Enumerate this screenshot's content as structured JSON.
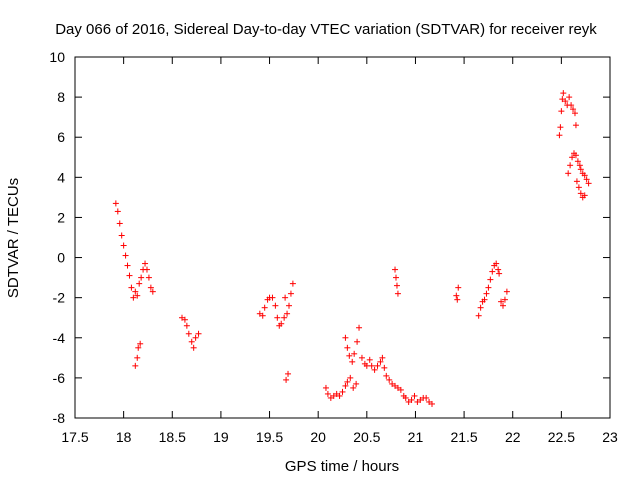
{
  "chart_data": {
    "type": "scatter",
    "title": "Day 066 of 2016, Sidereal Day-to-day VTEC variation (SDTVAR) for receiver reyk",
    "xlabel": "GPS time / hours",
    "ylabel": "SDTVAR / TECUs",
    "xlim": [
      17.5,
      23
    ],
    "ylim": [
      -8,
      10
    ],
    "xticks": [
      "17.5",
      "18",
      "18.5",
      "19",
      "19.5",
      "20",
      "20.5",
      "21",
      "21.5",
      "22",
      "22.5",
      "23"
    ],
    "yticks": [
      "-8",
      "-6",
      "-4",
      "-2",
      "0",
      "2",
      "4",
      "6",
      "8",
      "10"
    ],
    "grid": false,
    "marker": "+",
    "marker_color": "#ff0000",
    "series": [
      {
        "name": "SDTVAR",
        "points": [
          [
            17.92,
            2.7
          ],
          [
            17.94,
            2.3
          ],
          [
            17.96,
            1.7
          ],
          [
            17.98,
            1.1
          ],
          [
            18.0,
            0.6
          ],
          [
            18.02,
            0.1
          ],
          [
            18.04,
            -0.4
          ],
          [
            18.06,
            -0.9
          ],
          [
            18.08,
            -1.5
          ],
          [
            18.1,
            -2.0
          ],
          [
            18.12,
            -1.7
          ],
          [
            18.14,
            -1.9
          ],
          [
            18.16,
            -1.3
          ],
          [
            18.18,
            -1.0
          ],
          [
            18.12,
            -5.4
          ],
          [
            18.14,
            -5.0
          ],
          [
            18.15,
            -4.5
          ],
          [
            18.17,
            -4.3
          ],
          [
            18.2,
            -0.6
          ],
          [
            18.22,
            -0.3
          ],
          [
            18.24,
            -0.6
          ],
          [
            18.26,
            -1.0
          ],
          [
            18.28,
            -1.5
          ],
          [
            18.3,
            -1.7
          ],
          [
            18.6,
            -3.0
          ],
          [
            18.63,
            -3.1
          ],
          [
            18.65,
            -3.4
          ],
          [
            18.67,
            -3.8
          ],
          [
            18.7,
            -4.2
          ],
          [
            18.72,
            -4.5
          ],
          [
            18.74,
            -4.0
          ],
          [
            18.77,
            -3.8
          ],
          [
            19.4,
            -2.8
          ],
          [
            19.43,
            -2.9
          ],
          [
            19.45,
            -2.5
          ],
          [
            19.48,
            -2.1
          ],
          [
            19.5,
            -2.0
          ],
          [
            19.53,
            -2.0
          ],
          [
            19.56,
            -2.4
          ],
          [
            19.58,
            -3.0
          ],
          [
            19.6,
            -3.4
          ],
          [
            19.62,
            -3.3
          ],
          [
            19.65,
            -3.0
          ],
          [
            19.68,
            -2.8
          ],
          [
            19.7,
            -2.4
          ],
          [
            19.72,
            -1.8
          ],
          [
            19.74,
            -1.3
          ],
          [
            19.66,
            -2.0
          ],
          [
            19.67,
            -6.1
          ],
          [
            19.69,
            -5.8
          ],
          [
            20.08,
            -6.5
          ],
          [
            20.1,
            -6.8
          ],
          [
            20.13,
            -7.0
          ],
          [
            20.16,
            -6.9
          ],
          [
            20.19,
            -6.8
          ],
          [
            20.22,
            -6.9
          ],
          [
            20.25,
            -6.7
          ],
          [
            20.28,
            -6.4
          ],
          [
            20.3,
            -6.2
          ],
          [
            20.33,
            -6.0
          ],
          [
            20.36,
            -6.5
          ],
          [
            20.39,
            -6.3
          ],
          [
            20.28,
            -4.0
          ],
          [
            20.3,
            -4.5
          ],
          [
            20.32,
            -4.9
          ],
          [
            20.35,
            -5.2
          ],
          [
            20.37,
            -4.8
          ],
          [
            20.4,
            -4.2
          ],
          [
            20.42,
            -3.5
          ],
          [
            20.45,
            -5.0
          ],
          [
            20.48,
            -5.3
          ],
          [
            20.5,
            -5.4
          ],
          [
            20.53,
            -5.1
          ],
          [
            20.55,
            -5.4
          ],
          [
            20.58,
            -5.6
          ],
          [
            20.61,
            -5.4
          ],
          [
            20.64,
            -5.2
          ],
          [
            20.66,
            -5.0
          ],
          [
            20.68,
            -5.5
          ],
          [
            20.7,
            -5.9
          ],
          [
            20.73,
            -6.1
          ],
          [
            20.76,
            -6.3
          ],
          [
            20.79,
            -6.4
          ],
          [
            20.82,
            -6.5
          ],
          [
            20.85,
            -6.6
          ],
          [
            20.88,
            -6.9
          ],
          [
            20.9,
            -7.0
          ],
          [
            20.93,
            -7.2
          ],
          [
            20.96,
            -7.1
          ],
          [
            20.99,
            -6.9
          ],
          [
            21.02,
            -7.2
          ],
          [
            21.05,
            -7.1
          ],
          [
            21.08,
            -7.0
          ],
          [
            21.11,
            -7.0
          ],
          [
            21.14,
            -7.2
          ],
          [
            21.17,
            -7.3
          ],
          [
            20.79,
            -0.6
          ],
          [
            20.8,
            -1.0
          ],
          [
            20.81,
            -1.4
          ],
          [
            20.82,
            -1.8
          ],
          [
            21.42,
            -1.9
          ],
          [
            21.43,
            -2.1
          ],
          [
            21.44,
            -1.5
          ],
          [
            21.65,
            -2.9
          ],
          [
            21.67,
            -2.5
          ],
          [
            21.69,
            -2.2
          ],
          [
            21.71,
            -2.1
          ],
          [
            21.73,
            -1.8
          ],
          [
            21.75,
            -1.5
          ],
          [
            21.77,
            -1.1
          ],
          [
            21.79,
            -0.7
          ],
          [
            21.81,
            -0.4
          ],
          [
            21.83,
            -0.3
          ],
          [
            21.85,
            -0.6
          ],
          [
            21.86,
            -0.8
          ],
          [
            21.88,
            -2.2
          ],
          [
            21.9,
            -2.4
          ],
          [
            21.92,
            -2.1
          ],
          [
            21.94,
            -1.7
          ],
          [
            22.48,
            6.1
          ],
          [
            22.49,
            6.5
          ],
          [
            22.5,
            7.3
          ],
          [
            22.51,
            7.9
          ],
          [
            22.52,
            8.2
          ],
          [
            22.54,
            7.8
          ],
          [
            22.56,
            7.6
          ],
          [
            22.58,
            8.0
          ],
          [
            22.6,
            7.6
          ],
          [
            22.62,
            7.4
          ],
          [
            22.64,
            7.2
          ],
          [
            22.65,
            6.6
          ],
          [
            22.57,
            4.2
          ],
          [
            22.59,
            4.6
          ],
          [
            22.61,
            5.0
          ],
          [
            22.63,
            5.2
          ],
          [
            22.65,
            5.1
          ],
          [
            22.67,
            4.8
          ],
          [
            22.69,
            4.6
          ],
          [
            22.7,
            4.4
          ],
          [
            22.72,
            4.2
          ],
          [
            22.74,
            4.1
          ],
          [
            22.76,
            3.9
          ],
          [
            22.78,
            3.7
          ],
          [
            22.66,
            3.8
          ],
          [
            22.68,
            3.5
          ],
          [
            22.7,
            3.2
          ],
          [
            22.72,
            3.0
          ],
          [
            22.74,
            3.1
          ]
        ]
      }
    ]
  }
}
